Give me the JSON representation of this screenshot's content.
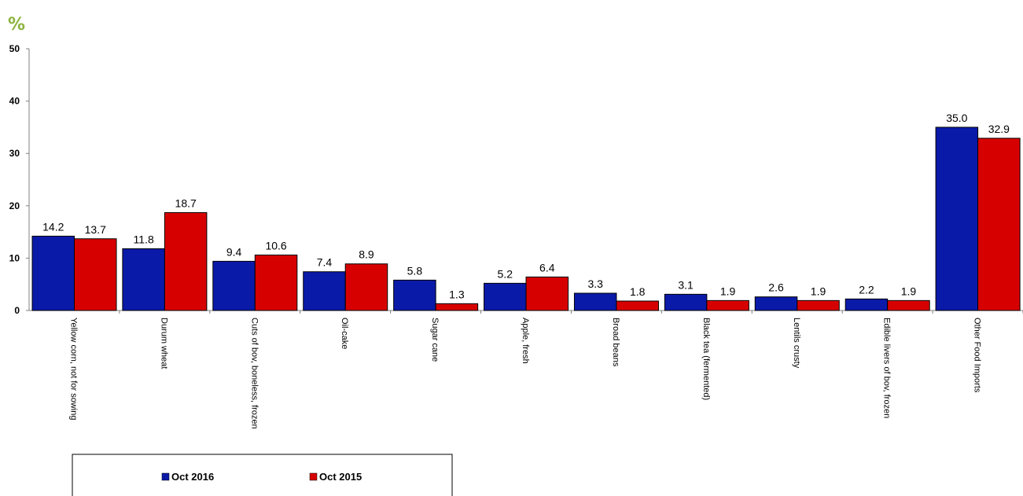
{
  "chart_data": {
    "type": "bar",
    "unit_label": "%",
    "categories": [
      "Yellow corn, not for sowing",
      "Durum wheat",
      "Cuts of bov, boneless, frozen",
      "Oil-cake",
      "Sugar cane",
      "Apple, fresh",
      "Broad beans",
      "Black tea (fermented)",
      "Lentils crusty",
      "Edible livers of bov, frozen",
      "Other Food  Imports"
    ],
    "series": [
      {
        "name": "Oct 2016",
        "color": "#0a1aa8",
        "values": [
          14.2,
          11.8,
          9.4,
          7.4,
          5.8,
          5.2,
          3.3,
          3.1,
          2.6,
          2.2,
          35.0
        ],
        "labels": [
          "14.2",
          "11.8",
          "9.4",
          "7.4",
          "5.8",
          "5.2",
          "3.3",
          "3.1",
          "2.6",
          "2.2",
          "35.0"
        ]
      },
      {
        "name": "Oct 2015",
        "color": "#d70000",
        "values": [
          13.7,
          18.7,
          10.6,
          8.9,
          1.3,
          6.4,
          1.8,
          1.9,
          1.9,
          1.9,
          32.9
        ],
        "labels": [
          "13.7",
          "18.7",
          "10.6",
          "8.9",
          "1.3",
          "6.4",
          "1.8",
          "1.9",
          "1.9",
          "1.9",
          "32.9"
        ]
      }
    ],
    "ylim": [
      0,
      50
    ],
    "yticks": [
      0,
      10,
      20,
      30,
      40,
      50
    ],
    "ytick_labels": [
      "0",
      "10",
      "20",
      "30",
      "40",
      "50"
    ],
    "grid": false,
    "legend": "bottom-left"
  }
}
